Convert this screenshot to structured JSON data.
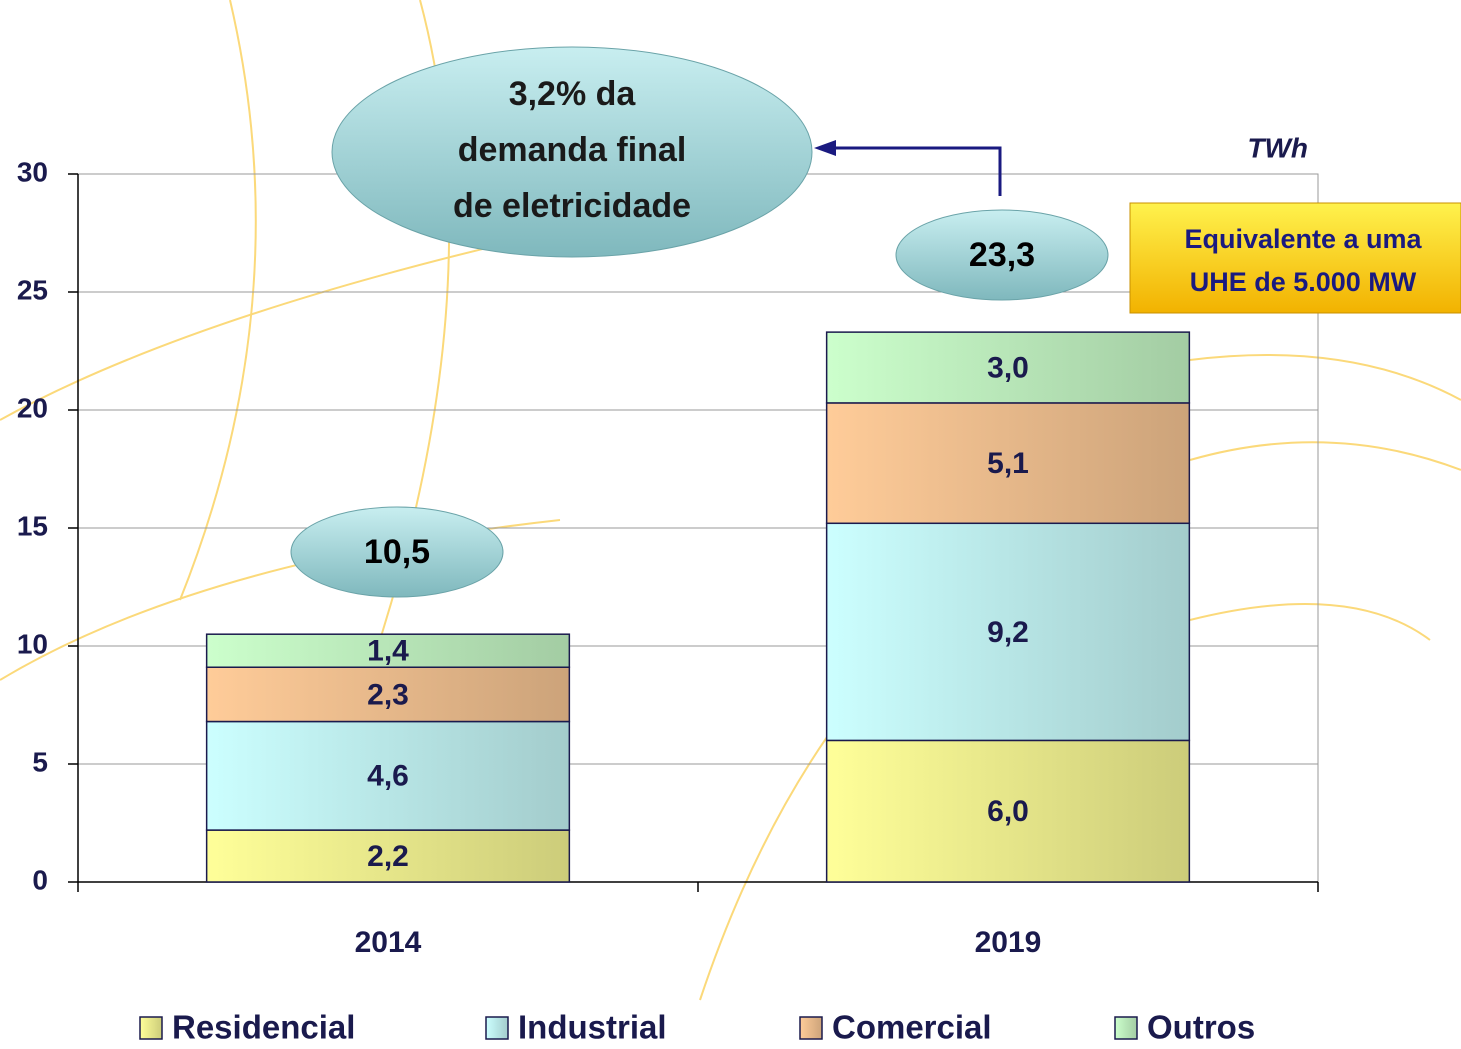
{
  "chart_data": {
    "type": "stacked_bar",
    "unit": "TWh",
    "categories": [
      "2014",
      "2019"
    ],
    "series": [
      {
        "name": "Residencial",
        "color": "#ffff99",
        "values": [
          2.2,
          6.0
        ],
        "value_labels": [
          "2,2",
          "6,0"
        ]
      },
      {
        "name": "Industrial",
        "color": "#ccffff",
        "values": [
          4.6,
          9.2
        ],
        "value_labels": [
          "4,6",
          "9,2"
        ]
      },
      {
        "name": "Comercial",
        "color": "#ffcc99",
        "values": [
          2.3,
          5.1
        ],
        "value_labels": [
          "2,3",
          "5,1"
        ]
      },
      {
        "name": "Outros",
        "color": "#ccffcc",
        "values": [
          1.4,
          3.0
        ],
        "value_labels": [
          "1,4",
          "3,0"
        ]
      }
    ],
    "totals": {
      "values": [
        10.5,
        23.3
      ],
      "value_labels": [
        "10,5",
        "23,3"
      ]
    },
    "ylim": [
      0,
      30
    ],
    "yticks": [
      0,
      5,
      10,
      15,
      20,
      25,
      30
    ],
    "grid": true,
    "legend": "bottom",
    "annotations": [
      {
        "lines": [
          "3,2% da",
          "demanda final",
          "de eletricidade"
        ]
      },
      {
        "lines": [
          "Equivalente a uma",
          "UHE de 5.000 MW"
        ]
      }
    ]
  }
}
